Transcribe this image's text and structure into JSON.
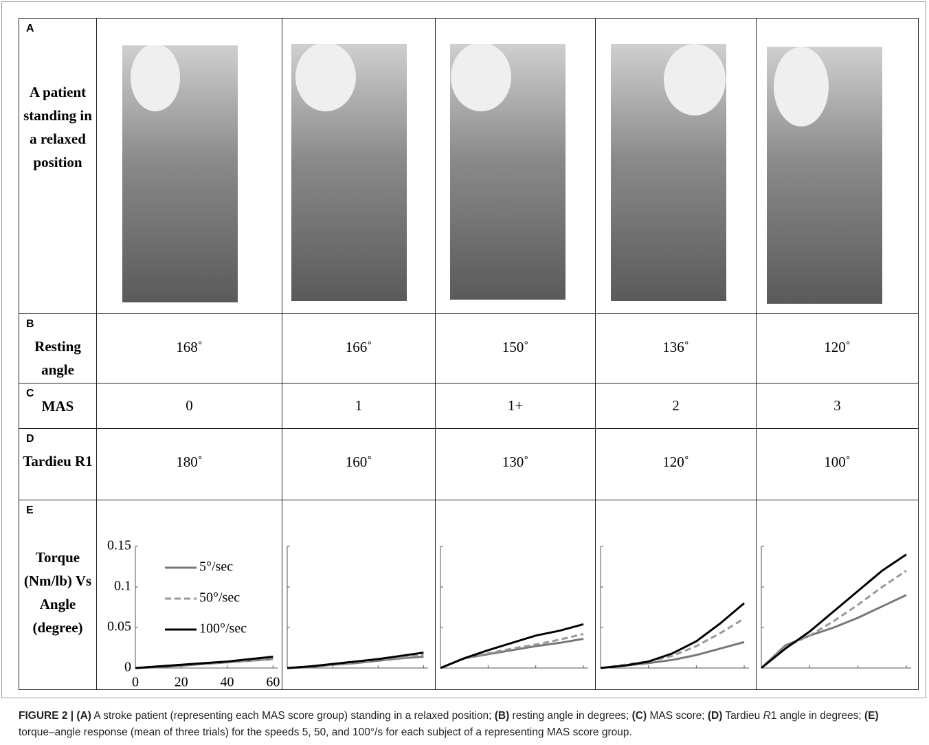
{
  "table": {
    "rows": [
      {
        "letter": "A",
        "header": "A patient standing in a relaxed position"
      },
      {
        "letter": "B",
        "header": "Resting angle",
        "cells": [
          "168˚",
          "166˚",
          "150˚",
          "136˚",
          "120˚"
        ]
      },
      {
        "letter": "C",
        "header": "MAS",
        "cells": [
          "0",
          "1",
          "1+",
          "2",
          "3"
        ]
      },
      {
        "letter": "D",
        "header": "Tardieu R1",
        "cells": [
          "180˚",
          "160˚",
          "130˚",
          "120˚",
          "100˚"
        ]
      },
      {
        "letter": "E",
        "header": "Torque (Nm/lb) Vs Angle (degree)"
      }
    ]
  },
  "torque_charts": {
    "type": "line",
    "x": [
      0,
      10,
      20,
      30,
      40,
      50,
      60
    ],
    "xlim": [
      0,
      62
    ],
    "ylim": [
      0,
      0.15
    ],
    "xticks": [
      0,
      20,
      40,
      60
    ],
    "yticks": [
      0,
      0.05,
      0.1,
      0.15
    ],
    "series": [
      {
        "name": "5°/sec",
        "color": "#777777",
        "dashed": false
      },
      {
        "name": "50°/sec",
        "color": "#999999",
        "dashed": true
      },
      {
        "name": "100°/sec",
        "color": "#000000",
        "dashed": false
      }
    ],
    "panels": [
      {
        "values": [
          [
            0,
            0.001,
            0.003,
            0.005,
            0.007,
            0.009,
            0.011
          ],
          [
            0,
            0.002,
            0.004,
            0.005,
            0.007,
            0.009,
            0.012
          ],
          [
            0,
            0.002,
            0.004,
            0.006,
            0.008,
            0.011,
            0.014
          ]
        ]
      },
      {
        "values": [
          [
            0,
            0.001,
            0.004,
            0.006,
            0.009,
            0.012,
            0.014
          ],
          [
            0,
            0.002,
            0.004,
            0.007,
            0.01,
            0.013,
            0.016
          ],
          [
            0,
            0.002,
            0.005,
            0.008,
            0.011,
            0.015,
            0.019
          ]
        ]
      },
      {
        "values": [
          [
            0,
            0.012,
            0.017,
            0.022,
            0.027,
            0.031,
            0.036
          ],
          [
            0,
            0.012,
            0.018,
            0.024,
            0.029,
            0.035,
            0.042
          ],
          [
            0,
            0.012,
            0.022,
            0.031,
            0.04,
            0.046,
            0.054
          ]
        ]
      },
      {
        "values": [
          [
            0,
            0.003,
            0.006,
            0.01,
            0.016,
            0.024,
            0.032
          ],
          [
            0,
            0.004,
            0.008,
            0.015,
            0.027,
            0.043,
            0.061
          ],
          [
            0,
            0.003,
            0.008,
            0.018,
            0.033,
            0.055,
            0.08
          ]
        ]
      },
      {
        "values": [
          [
            0,
            0.028,
            0.04,
            0.05,
            0.062,
            0.076,
            0.09
          ],
          [
            0,
            0.026,
            0.04,
            0.058,
            0.078,
            0.1,
            0.12
          ],
          [
            0,
            0.024,
            0.045,
            0.07,
            0.095,
            0.12,
            0.14
          ]
        ]
      }
    ]
  },
  "caption": [
    "FIGURE 2 | (A)",
    " A stroke patient (representing each MAS score group) standing in a relaxed position; ",
    "(B)",
    " resting angle in degrees; ",
    "(C)",
    " MAS score; ",
    "(D)",
    " Tardieu ",
    "R",
    "1 angle in degrees; ",
    "(E)",
    " torque–angle response (mean of three trials) for the speeds 5, 50, and 100°/s for each subject of a representing MAS score group."
  ]
}
